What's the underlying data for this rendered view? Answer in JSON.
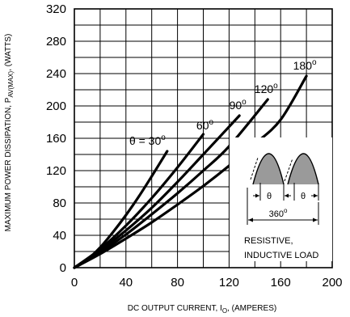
{
  "chart_data": {
    "type": "line",
    "xlabel": "DC OUTPUT CURRENT, I",
    "xlabel_sub": "O",
    "xlabel_tail": ", (AMPERES)",
    "ylabel": "MAXIMUM POWER DISSIPATION, P",
    "ylabel_sub": "AV(MAX)",
    "ylabel_tail": ", (WATTS)",
    "xlim": [
      0,
      200
    ],
    "ylim": [
      0,
      320
    ],
    "xticks": [
      "0",
      "40",
      "80",
      "120",
      "160",
      "200"
    ],
    "yticks": [
      "0",
      "40",
      "80",
      "120",
      "160",
      "200",
      "240",
      "280",
      "320"
    ],
    "grid": true,
    "series": [
      {
        "name": "θ = 30",
        "label_prefix": "θ = ",
        "label_value": "30",
        "label_unit": "o",
        "x": [
          0,
          10,
          20,
          30,
          40,
          50,
          60,
          72
        ],
        "y": [
          0,
          10,
          25,
          44,
          65,
          88,
          113,
          144
        ]
      },
      {
        "name": "60",
        "label_prefix": "",
        "label_value": "60",
        "label_unit": "o",
        "x": [
          0,
          20,
          40,
          60,
          80,
          100
        ],
        "y": [
          0,
          23,
          52,
          86,
          124,
          165
        ]
      },
      {
        "name": "90",
        "label_prefix": "",
        "label_value": "90",
        "label_unit": "o",
        "x": [
          0,
          20,
          40,
          60,
          80,
          100,
          128
        ],
        "y": [
          0,
          21,
          46,
          74,
          106,
          140,
          188
        ]
      },
      {
        "name": "120",
        "label_prefix": "",
        "label_value": "120",
        "label_unit": "o",
        "x": [
          0,
          20,
          40,
          60,
          80,
          100,
          120,
          150
        ],
        "y": [
          0,
          19,
          41,
          66,
          92,
          120,
          150,
          208
        ]
      },
      {
        "name": "180",
        "label_prefix": "",
        "label_value": "180",
        "label_unit": "o",
        "x": [
          0,
          20,
          40,
          60,
          80,
          100,
          120,
          140,
          160,
          180
        ],
        "y": [
          0,
          17,
          36,
          56,
          78,
          101,
          126,
          153,
          183,
          237
        ]
      }
    ],
    "inset": {
      "theta_left": "θ",
      "theta_right": "θ",
      "angle_value": "360",
      "angle_unit": "o",
      "note_line1": "RESISTIVE,",
      "note_line2": "INDUCTIVE LOAD"
    }
  }
}
